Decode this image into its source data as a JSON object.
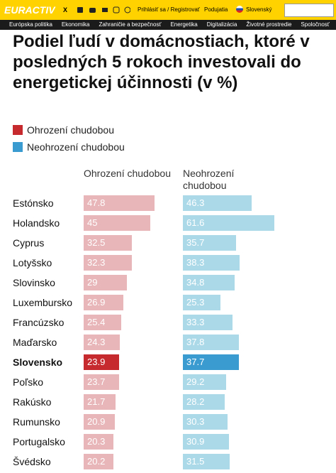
{
  "header": {
    "logo": "EURACTIV",
    "login": "Prihlásiť sa / Registrovať",
    "events": "Podujatia",
    "language": "Slovenský"
  },
  "nav": [
    "Európska politika",
    "Ekonomika",
    "Zahraničie a bezpečnosť",
    "Energetika",
    "Digitalizácia",
    "Životné prostredie",
    "Spoločnosť"
  ],
  "chart_data": {
    "type": "bar",
    "title": "Podiel ľudí v domácnostiach, ktoré v posledných 5 rokoch investovali do energetickej účinnosti (v %)",
    "categories": [
      "Estónsko",
      "Holandsko",
      "Cyprus",
      "Lotyšsko",
      "Slovinsko",
      "Luxembursko",
      "Francúzsko",
      "Maďarsko",
      "Slovensko",
      "Poľsko",
      "Rakúsko",
      "Rumunsko",
      "Portugalsko",
      "Švédsko"
    ],
    "highlight": 8,
    "series": [
      {
        "name": "Ohrození chudobou",
        "color": "#c62a2f",
        "bar_color": "#e8b5b8",
        "values": [
          47.8,
          45,
          32.5,
          32.3,
          29,
          26.9,
          25.4,
          24.3,
          23.9,
          23.7,
          21.7,
          20.9,
          20.3,
          20.2
        ]
      },
      {
        "name": "Neohrození chudobou",
        "color": "#3a9bd0",
        "bar_color": "#acd9e8",
        "values": [
          46.3,
          61.6,
          35.7,
          38.3,
          34.8,
          25.3,
          33.3,
          37.8,
          37.7,
          29.2,
          28.2,
          30.3,
          30.9,
          31.5
        ]
      }
    ]
  }
}
